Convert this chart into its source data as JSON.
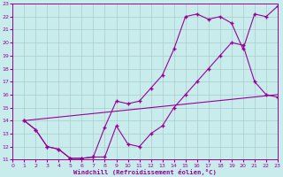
{
  "xlabel": "Windchill (Refroidissement éolien,°C)",
  "bg_color": "#c8ecec",
  "line_color": "#990099",
  "grid_color": "#aacccc",
  "xlim": [
    0,
    23
  ],
  "ylim": [
    11,
    23
  ],
  "xticks": [
    0,
    1,
    2,
    3,
    4,
    5,
    6,
    7,
    8,
    9,
    10,
    11,
    12,
    13,
    14,
    15,
    16,
    17,
    18,
    19,
    20,
    21,
    22,
    23
  ],
  "yticks": [
    11,
    12,
    13,
    14,
    15,
    16,
    17,
    18,
    19,
    20,
    21,
    22,
    23
  ],
  "line1_x": [
    1,
    2,
    3,
    4,
    5,
    6,
    7,
    8,
    9,
    10,
    11,
    12,
    13,
    14,
    15,
    16,
    17,
    18,
    19,
    20,
    21,
    22,
    23
  ],
  "line1_y": [
    14.0,
    13.3,
    12.0,
    11.8,
    11.1,
    11.1,
    11.2,
    13.5,
    15.5,
    15.3,
    15.5,
    16.5,
    17.5,
    19.5,
    22.0,
    22.2,
    21.8,
    22.0,
    21.5,
    19.5,
    22.2,
    22.0,
    22.8
  ],
  "line2_x": [
    1,
    2,
    3,
    4,
    5,
    6,
    7,
    8,
    9,
    10,
    11,
    12,
    13,
    14,
    15,
    16,
    17,
    18,
    19,
    20,
    21,
    22,
    23
  ],
  "line2_y": [
    14.0,
    13.3,
    12.0,
    11.8,
    11.1,
    11.1,
    11.2,
    11.2,
    13.6,
    12.2,
    12.0,
    13.0,
    13.6,
    15.0,
    16.0,
    17.0,
    18.0,
    19.0,
    20.0,
    19.8,
    17.0,
    16.0,
    15.8
  ],
  "line3_x": [
    1,
    23
  ],
  "line3_y": [
    14.0,
    16.0
  ]
}
